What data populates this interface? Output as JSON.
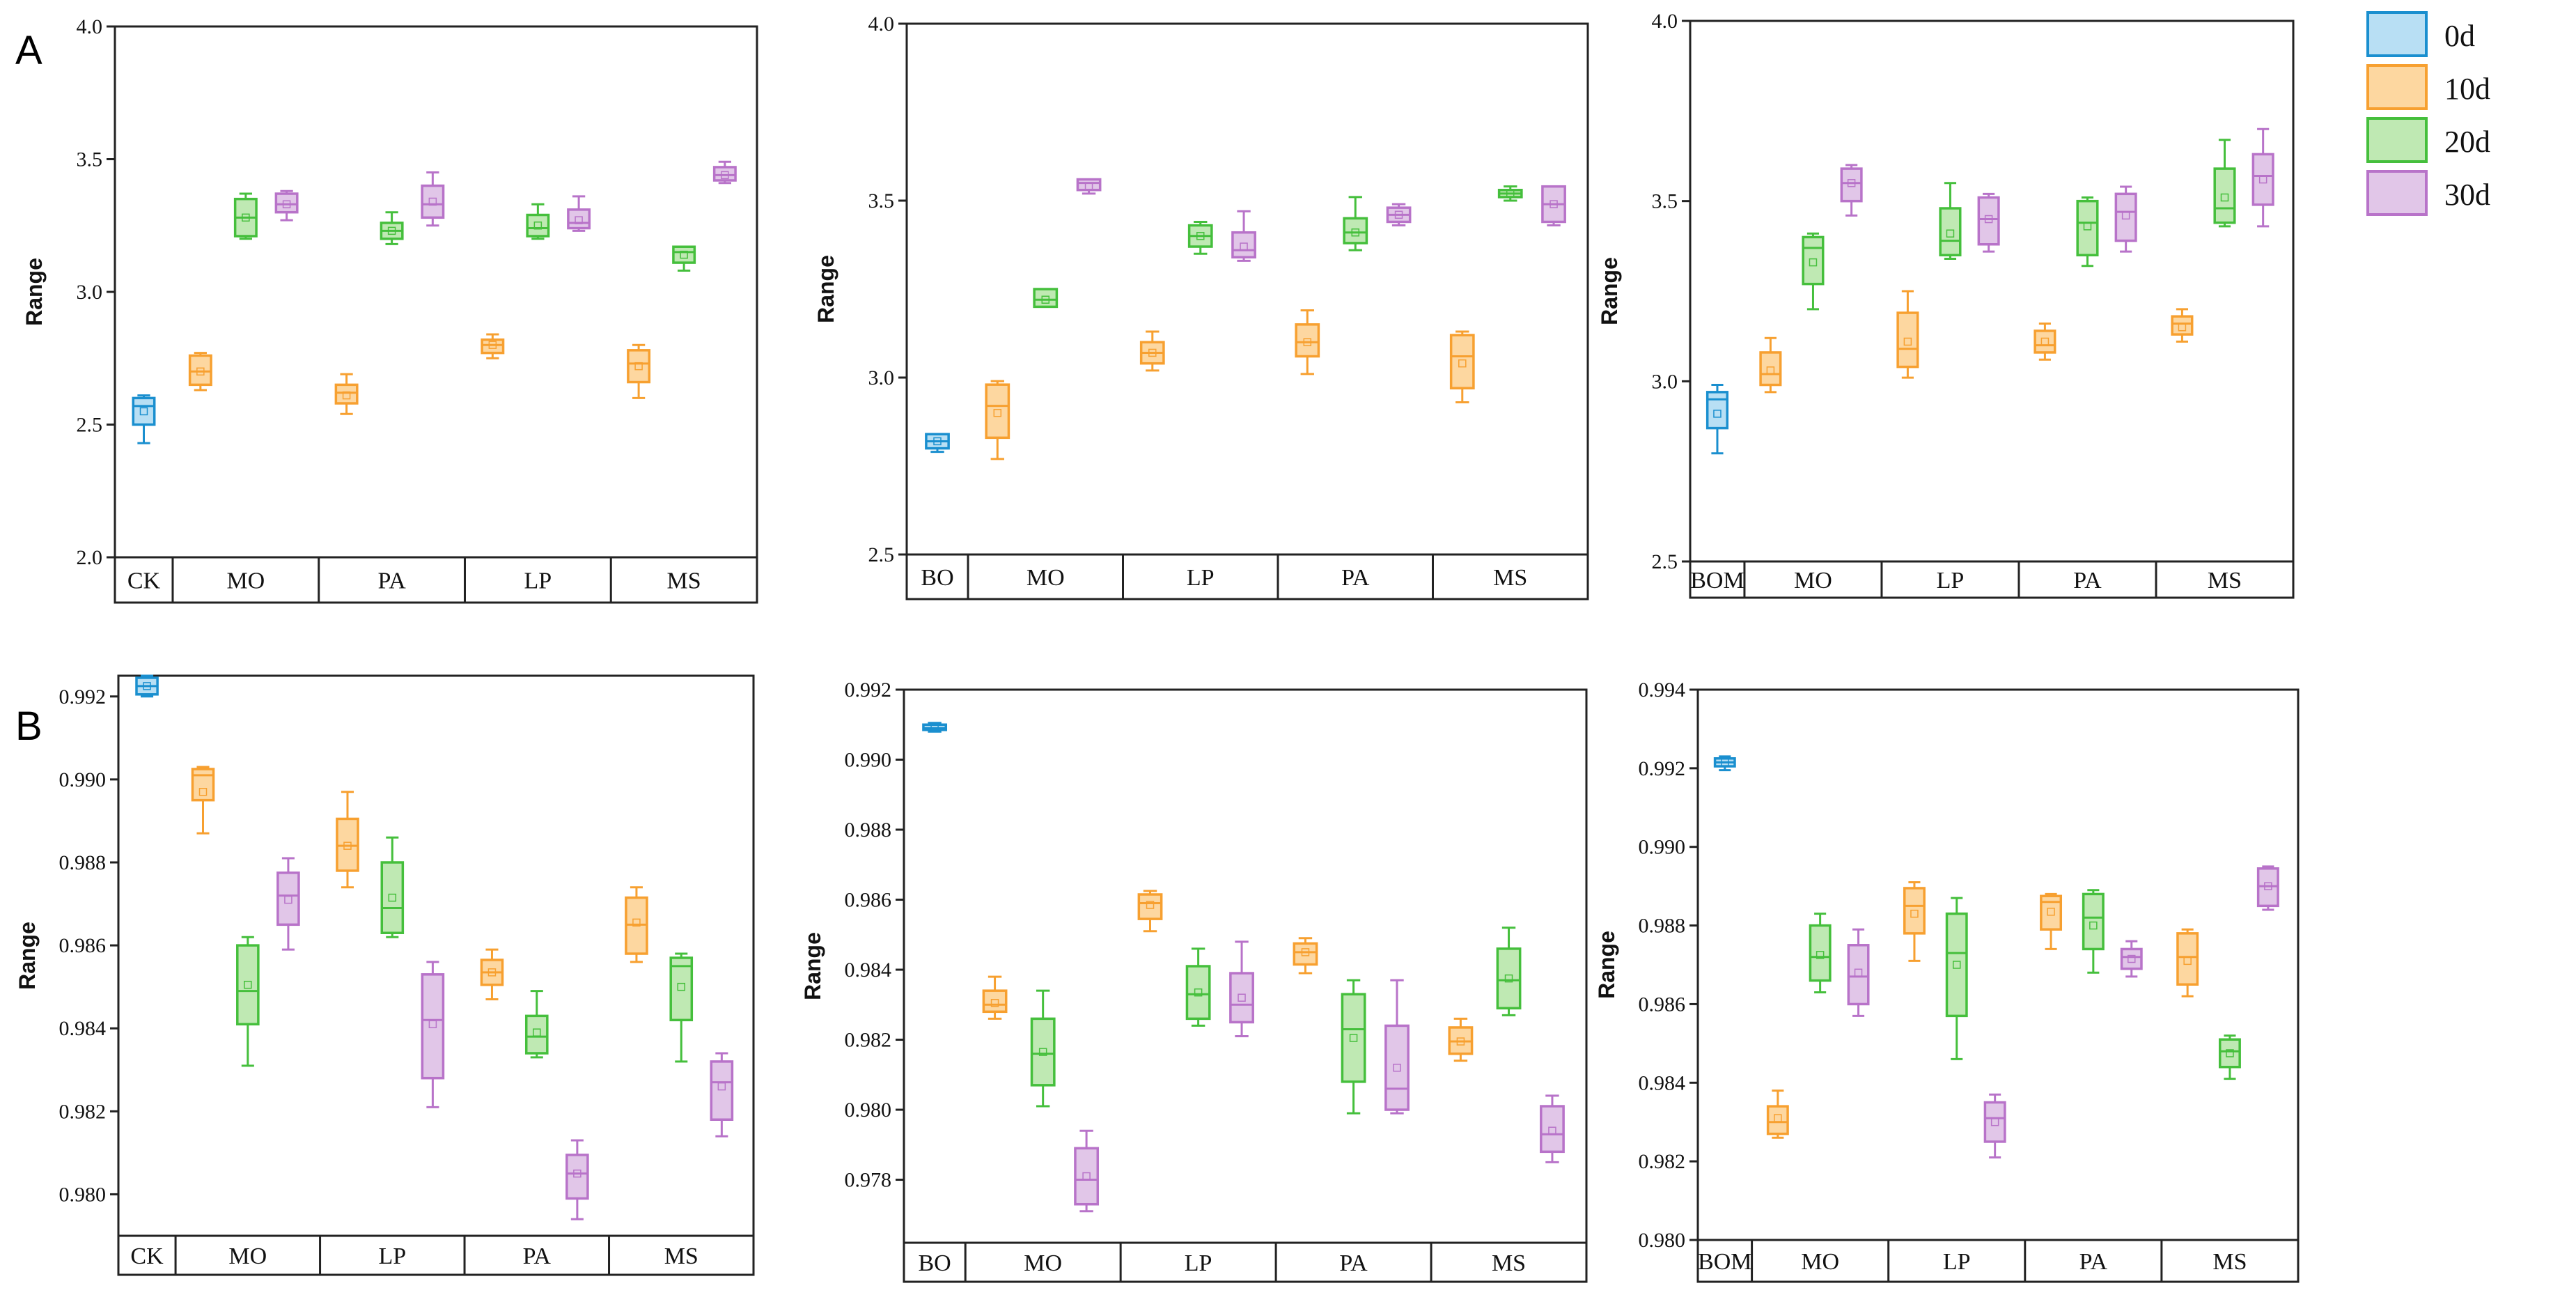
{
  "panels": {
    "A": "A",
    "B": "B"
  },
  "legend": {
    "items": [
      {
        "label": "0d",
        "fill": "#b8dff4",
        "stroke": "#1a8fcf"
      },
      {
        "label": "10d",
        "fill": "#fdd7a0",
        "stroke": "#f7a030"
      },
      {
        "label": "20d",
        "fill": "#bfe9b3",
        "stroke": "#45bf3c"
      },
      {
        "label": "30d",
        "fill": "#e1c6e8",
        "stroke": "#b873c9"
      }
    ]
  },
  "chart_data": [
    {
      "type": "box",
      "panel": "A",
      "ylabel": "Range",
      "ylim": [
        2.0,
        4.0
      ],
      "yticks": [
        "2.0",
        "2.5",
        "3.0",
        "3.5",
        "4.0"
      ],
      "groups": [
        "CK",
        "MO",
        "PA",
        "LP",
        "MS"
      ],
      "boxes": [
        {
          "group": 0,
          "series": 0,
          "min": 2.43,
          "q1": 2.5,
          "median": 2.57,
          "q3": 2.6,
          "max": 2.61,
          "mean": 2.55
        },
        {
          "group": 1,
          "series": 1,
          "min": 2.63,
          "q1": 2.65,
          "median": 2.7,
          "q3": 2.76,
          "max": 2.77,
          "mean": 2.7
        },
        {
          "group": 1,
          "series": 2,
          "min": 3.2,
          "q1": 3.21,
          "median": 3.28,
          "q3": 3.35,
          "max": 3.37,
          "mean": 3.28
        },
        {
          "group": 1,
          "series": 3,
          "min": 3.27,
          "q1": 3.3,
          "median": 3.33,
          "q3": 3.37,
          "max": 3.38,
          "mean": 3.33
        },
        {
          "group": 2,
          "series": 1,
          "min": 2.54,
          "q1": 2.58,
          "median": 2.62,
          "q3": 2.65,
          "max": 2.69,
          "mean": 2.61
        },
        {
          "group": 2,
          "series": 2,
          "min": 3.18,
          "q1": 3.2,
          "median": 3.23,
          "q3": 3.26,
          "max": 3.3,
          "mean": 3.23
        },
        {
          "group": 2,
          "series": 3,
          "min": 3.25,
          "q1": 3.28,
          "median": 3.33,
          "q3": 3.4,
          "max": 3.45,
          "mean": 3.34
        },
        {
          "group": 3,
          "series": 1,
          "min": 2.75,
          "q1": 2.77,
          "median": 2.8,
          "q3": 2.82,
          "max": 2.84,
          "mean": 2.8
        },
        {
          "group": 3,
          "series": 2,
          "min": 3.2,
          "q1": 3.21,
          "median": 3.24,
          "q3": 3.29,
          "max": 3.33,
          "mean": 3.25
        },
        {
          "group": 3,
          "series": 3,
          "min": 3.23,
          "q1": 3.24,
          "median": 3.26,
          "q3": 3.31,
          "max": 3.36,
          "mean": 3.27
        },
        {
          "group": 4,
          "series": 1,
          "min": 2.6,
          "q1": 2.66,
          "median": 2.73,
          "q3": 2.78,
          "max": 2.8,
          "mean": 2.72
        },
        {
          "group": 4,
          "series": 2,
          "min": 3.08,
          "q1": 3.11,
          "median": 3.15,
          "q3": 3.17,
          "max": 3.17,
          "mean": 3.14
        },
        {
          "group": 4,
          "series": 3,
          "min": 3.41,
          "q1": 3.42,
          "median": 3.44,
          "q3": 3.47,
          "max": 3.49,
          "mean": 3.44
        }
      ]
    },
    {
      "type": "box",
      "panel": "A",
      "ylabel": "Range",
      "ylim": [
        2.5,
        4.0
      ],
      "yticks": [
        "2.5",
        "3.0",
        "3.5",
        "4.0"
      ],
      "groups": [
        "BO",
        "MO",
        "LP",
        "PA",
        "MS"
      ],
      "boxes": [
        {
          "group": 0,
          "series": 0,
          "min": 2.79,
          "q1": 2.8,
          "median": 2.82,
          "q3": 2.84,
          "max": 2.84,
          "mean": 2.82
        },
        {
          "group": 1,
          "series": 1,
          "min": 2.77,
          "q1": 2.83,
          "median": 2.92,
          "q3": 2.98,
          "max": 2.99,
          "mean": 2.9
        },
        {
          "group": 1,
          "series": 2,
          "min": 3.2,
          "q1": 3.2,
          "median": 3.22,
          "q3": 3.25,
          "max": 3.25,
          "mean": 3.22
        },
        {
          "group": 1,
          "series": 3,
          "min": 3.52,
          "q1": 3.53,
          "median": 3.55,
          "q3": 3.56,
          "max": 3.56,
          "mean": 3.54
        },
        {
          "group": 2,
          "series": 1,
          "min": 3.02,
          "q1": 3.04,
          "median": 3.07,
          "q3": 3.1,
          "max": 3.13,
          "mean": 3.07
        },
        {
          "group": 2,
          "series": 2,
          "min": 3.35,
          "q1": 3.37,
          "median": 3.4,
          "q3": 3.43,
          "max": 3.44,
          "mean": 3.4
        },
        {
          "group": 2,
          "series": 3,
          "min": 3.33,
          "q1": 3.34,
          "median": 3.36,
          "q3": 3.41,
          "max": 3.47,
          "mean": 3.37
        },
        {
          "group": 3,
          "series": 1,
          "min": 3.01,
          "q1": 3.06,
          "median": 3.1,
          "q3": 3.15,
          "max": 3.19,
          "mean": 3.1
        },
        {
          "group": 3,
          "series": 2,
          "min": 3.36,
          "q1": 3.38,
          "median": 3.41,
          "q3": 3.45,
          "max": 3.51,
          "mean": 3.41
        },
        {
          "group": 3,
          "series": 3,
          "min": 3.43,
          "q1": 3.44,
          "median": 3.46,
          "q3": 3.48,
          "max": 3.49,
          "mean": 3.46
        },
        {
          "group": 4,
          "series": 1,
          "min": 2.93,
          "q1": 2.97,
          "median": 3.06,
          "q3": 3.12,
          "max": 3.13,
          "mean": 3.04
        },
        {
          "group": 4,
          "series": 2,
          "min": 3.5,
          "q1": 3.51,
          "median": 3.52,
          "q3": 3.53,
          "max": 3.54,
          "mean": 3.52
        },
        {
          "group": 4,
          "series": 3,
          "min": 3.43,
          "q1": 3.44,
          "median": 3.49,
          "q3": 3.54,
          "max": 3.54,
          "mean": 3.49
        }
      ]
    },
    {
      "type": "box",
      "panel": "A",
      "ylabel": "Range",
      "ylim": [
        2.5,
        4.0
      ],
      "yticks": [
        "2.5",
        "3.0",
        "3.5",
        "4.0"
      ],
      "groups": [
        "BOM",
        "MO",
        "LP",
        "PA",
        "MS"
      ],
      "boxes": [
        {
          "group": 0,
          "series": 0,
          "min": 2.8,
          "q1": 2.87,
          "median": 2.95,
          "q3": 2.97,
          "max": 2.99,
          "mean": 2.91
        },
        {
          "group": 1,
          "series": 1,
          "min": 2.97,
          "q1": 2.99,
          "median": 3.02,
          "q3": 3.08,
          "max": 3.12,
          "mean": 3.03
        },
        {
          "group": 1,
          "series": 2,
          "min": 3.2,
          "q1": 3.27,
          "median": 3.37,
          "q3": 3.4,
          "max": 3.41,
          "mean": 3.33
        },
        {
          "group": 1,
          "series": 3,
          "min": 3.46,
          "q1": 3.5,
          "median": 3.55,
          "q3": 3.59,
          "max": 3.6,
          "mean": 3.55
        },
        {
          "group": 2,
          "series": 1,
          "min": 3.01,
          "q1": 3.04,
          "median": 3.09,
          "q3": 3.19,
          "max": 3.25,
          "mean": 3.11
        },
        {
          "group": 2,
          "series": 2,
          "min": 3.34,
          "q1": 3.35,
          "median": 3.39,
          "q3": 3.48,
          "max": 3.55,
          "mean": 3.41
        },
        {
          "group": 2,
          "series": 3,
          "min": 3.36,
          "q1": 3.38,
          "median": 3.45,
          "q3": 3.51,
          "max": 3.52,
          "mean": 3.45
        },
        {
          "group": 3,
          "series": 1,
          "min": 3.06,
          "q1": 3.08,
          "median": 3.1,
          "q3": 3.14,
          "max": 3.16,
          "mean": 3.11
        },
        {
          "group": 3,
          "series": 2,
          "min": 3.32,
          "q1": 3.35,
          "median": 3.44,
          "q3": 3.5,
          "max": 3.51,
          "mean": 3.43
        },
        {
          "group": 3,
          "series": 3,
          "min": 3.36,
          "q1": 3.39,
          "median": 3.47,
          "q3": 3.52,
          "max": 3.54,
          "mean": 3.46
        },
        {
          "group": 4,
          "series": 1,
          "min": 3.11,
          "q1": 3.13,
          "median": 3.16,
          "q3": 3.18,
          "max": 3.2,
          "mean": 3.15
        },
        {
          "group": 4,
          "series": 2,
          "min": 3.43,
          "q1": 3.44,
          "median": 3.48,
          "q3": 3.59,
          "max": 3.67,
          "mean": 3.51
        },
        {
          "group": 4,
          "series": 3,
          "min": 3.43,
          "q1": 3.49,
          "median": 3.57,
          "q3": 3.63,
          "max": 3.7,
          "mean": 3.56
        }
      ]
    },
    {
      "type": "box",
      "panel": "B",
      "ylabel": "Range",
      "ylim": [
        0.979,
        0.9925
      ],
      "yticks": [
        "0.980",
        "0.982",
        "0.984",
        "0.986",
        "0.988",
        "0.990",
        "0.992"
      ],
      "tickvals": [
        0.98,
        0.982,
        0.984,
        0.986,
        0.988,
        0.99,
        0.992
      ],
      "groups": [
        "CK",
        "MO",
        "LP",
        "PA",
        "MS"
      ],
      "boxes": [
        {
          "group": 0,
          "series": 0,
          "min": 0.992,
          "q1": 0.99205,
          "median": 0.99225,
          "q3": 0.99245,
          "max": 0.9925,
          "mean": 0.99225
        },
        {
          "group": 1,
          "series": 1,
          "min": 0.9887,
          "q1": 0.9895,
          "median": 0.9901,
          "q3": 0.99025,
          "max": 0.9903,
          "mean": 0.9897
        },
        {
          "group": 1,
          "series": 2,
          "min": 0.9831,
          "q1": 0.9841,
          "median": 0.9849,
          "q3": 0.986,
          "max": 0.9862,
          "mean": 0.98505
        },
        {
          "group": 1,
          "series": 3,
          "min": 0.9859,
          "q1": 0.9865,
          "median": 0.9872,
          "q3": 0.98775,
          "max": 0.9881,
          "mean": 0.9871
        },
        {
          "group": 2,
          "series": 1,
          "min": 0.9874,
          "q1": 0.9878,
          "median": 0.9884,
          "q3": 0.98905,
          "max": 0.9897,
          "mean": 0.9884
        },
        {
          "group": 2,
          "series": 2,
          "min": 0.9862,
          "q1": 0.9863,
          "median": 0.9869,
          "q3": 0.988,
          "max": 0.9886,
          "mean": 0.98715
        },
        {
          "group": 2,
          "series": 3,
          "min": 0.9821,
          "q1": 0.9828,
          "median": 0.9842,
          "q3": 0.9853,
          "max": 0.9856,
          "mean": 0.9841
        },
        {
          "group": 3,
          "series": 1,
          "min": 0.9847,
          "q1": 0.98505,
          "median": 0.98535,
          "q3": 0.98565,
          "max": 0.9859,
          "mean": 0.98535
        },
        {
          "group": 3,
          "series": 2,
          "min": 0.9833,
          "q1": 0.9834,
          "median": 0.9838,
          "q3": 0.9843,
          "max": 0.9849,
          "mean": 0.9839
        },
        {
          "group": 3,
          "series": 3,
          "min": 0.9794,
          "q1": 0.9799,
          "median": 0.9805,
          "q3": 0.98095,
          "max": 0.9813,
          "mean": 0.9805
        },
        {
          "group": 4,
          "series": 1,
          "min": 0.9856,
          "q1": 0.9858,
          "median": 0.9865,
          "q3": 0.98715,
          "max": 0.9874,
          "mean": 0.98655
        },
        {
          "group": 4,
          "series": 2,
          "min": 0.9832,
          "q1": 0.9842,
          "median": 0.9855,
          "q3": 0.9857,
          "max": 0.9858,
          "mean": 0.985
        },
        {
          "group": 4,
          "series": 3,
          "min": 0.9814,
          "q1": 0.9818,
          "median": 0.9827,
          "q3": 0.9832,
          "max": 0.9834,
          "mean": 0.9826
        }
      ]
    },
    {
      "type": "box",
      "panel": "B",
      "ylabel": "Range",
      "ylim": [
        0.9762,
        0.992
      ],
      "yticks": [
        "0.978",
        "0.980",
        "0.982",
        "0.984",
        "0.986",
        "0.988",
        "0.990",
        "0.992"
      ],
      "tickvals": [
        0.978,
        0.98,
        0.982,
        0.984,
        0.986,
        0.988,
        0.99,
        0.992
      ],
      "groups": [
        "BO",
        "MO",
        "LP",
        "PA",
        "MS"
      ],
      "boxes": [
        {
          "group": 0,
          "series": 0,
          "min": 0.9908,
          "q1": 0.99085,
          "median": 0.9909,
          "q3": 0.991,
          "max": 0.99105,
          "mean": 0.9909
        },
        {
          "group": 1,
          "series": 1,
          "min": 0.9826,
          "q1": 0.9828,
          "median": 0.983,
          "q3": 0.9834,
          "max": 0.9838,
          "mean": 0.98305
        },
        {
          "group": 1,
          "series": 2,
          "min": 0.9801,
          "q1": 0.9807,
          "median": 0.9816,
          "q3": 0.9826,
          "max": 0.9834,
          "mean": 0.98165
        },
        {
          "group": 1,
          "series": 3,
          "min": 0.9771,
          "q1": 0.9773,
          "median": 0.978,
          "q3": 0.9789,
          "max": 0.9794,
          "mean": 0.9781
        },
        {
          "group": 2,
          "series": 1,
          "min": 0.9851,
          "q1": 0.98545,
          "median": 0.9859,
          "q3": 0.98615,
          "max": 0.98625,
          "mean": 0.98585
        },
        {
          "group": 2,
          "series": 2,
          "min": 0.9824,
          "q1": 0.9826,
          "median": 0.9833,
          "q3": 0.9841,
          "max": 0.9846,
          "mean": 0.98335
        },
        {
          "group": 2,
          "series": 3,
          "min": 0.9821,
          "q1": 0.9825,
          "median": 0.983,
          "q3": 0.9839,
          "max": 0.9848,
          "mean": 0.9832
        },
        {
          "group": 3,
          "series": 1,
          "min": 0.9839,
          "q1": 0.98415,
          "median": 0.9845,
          "q3": 0.98475,
          "max": 0.9849,
          "mean": 0.9845
        },
        {
          "group": 3,
          "series": 2,
          "min": 0.9799,
          "q1": 0.9808,
          "median": 0.9823,
          "q3": 0.9833,
          "max": 0.9837,
          "mean": 0.98205
        },
        {
          "group": 3,
          "series": 3,
          "min": 0.9799,
          "q1": 0.98,
          "median": 0.9806,
          "q3": 0.9824,
          "max": 0.9837,
          "mean": 0.9812
        },
        {
          "group": 4,
          "series": 1,
          "min": 0.9814,
          "q1": 0.9816,
          "median": 0.98195,
          "q3": 0.98235,
          "max": 0.9826,
          "mean": 0.98195
        },
        {
          "group": 4,
          "series": 2,
          "min": 0.9827,
          "q1": 0.9829,
          "median": 0.9837,
          "q3": 0.9846,
          "max": 0.9852,
          "mean": 0.98375
        },
        {
          "group": 4,
          "series": 3,
          "min": 0.9785,
          "q1": 0.9788,
          "median": 0.9793,
          "q3": 0.9801,
          "max": 0.9804,
          "mean": 0.9794
        }
      ]
    },
    {
      "type": "box",
      "panel": "B",
      "ylabel": "Range",
      "ylim": [
        0.98,
        0.994
      ],
      "yticks": [
        "0.980",
        "0.982",
        "0.984",
        "0.986",
        "0.988",
        "0.990",
        "0.992",
        "0.994"
      ],
      "tickvals": [
        0.98,
        0.982,
        0.984,
        0.986,
        0.988,
        0.99,
        0.992,
        0.994
      ],
      "groups": [
        "BOM",
        "MO",
        "LP",
        "PA",
        "MS"
      ],
      "boxes": [
        {
          "group": 0,
          "series": 0,
          "min": 0.99195,
          "q1": 0.99205,
          "median": 0.99215,
          "q3": 0.99225,
          "max": 0.9923,
          "mean": 0.99215
        },
        {
          "group": 1,
          "series": 1,
          "min": 0.9826,
          "q1": 0.9827,
          "median": 0.983,
          "q3": 0.9834,
          "max": 0.9838,
          "mean": 0.9831
        },
        {
          "group": 1,
          "series": 2,
          "min": 0.9863,
          "q1": 0.9866,
          "median": 0.9872,
          "q3": 0.988,
          "max": 0.9883,
          "mean": 0.98725
        },
        {
          "group": 1,
          "series": 3,
          "min": 0.9857,
          "q1": 0.986,
          "median": 0.9867,
          "q3": 0.9875,
          "max": 0.9879,
          "mean": 0.9868
        },
        {
          "group": 2,
          "series": 1,
          "min": 0.9871,
          "q1": 0.9878,
          "median": 0.9885,
          "q3": 0.98895,
          "max": 0.9891,
          "mean": 0.9883
        },
        {
          "group": 2,
          "series": 2,
          "min": 0.9846,
          "q1": 0.9857,
          "median": 0.9873,
          "q3": 0.9883,
          "max": 0.9887,
          "mean": 0.987
        },
        {
          "group": 2,
          "series": 3,
          "min": 0.9821,
          "q1": 0.9825,
          "median": 0.9831,
          "q3": 0.9835,
          "max": 0.9837,
          "mean": 0.983
        },
        {
          "group": 3,
          "series": 1,
          "min": 0.9874,
          "q1": 0.9879,
          "median": 0.9886,
          "q3": 0.98875,
          "max": 0.9888,
          "mean": 0.98835
        },
        {
          "group": 3,
          "series": 2,
          "min": 0.9868,
          "q1": 0.9874,
          "median": 0.9882,
          "q3": 0.9888,
          "max": 0.9889,
          "mean": 0.988
        },
        {
          "group": 3,
          "series": 3,
          "min": 0.9867,
          "q1": 0.9869,
          "median": 0.9872,
          "q3": 0.9874,
          "max": 0.9876,
          "mean": 0.98715
        },
        {
          "group": 4,
          "series": 1,
          "min": 0.9862,
          "q1": 0.9865,
          "median": 0.9872,
          "q3": 0.9878,
          "max": 0.9879,
          "mean": 0.9871
        },
        {
          "group": 4,
          "series": 2,
          "min": 0.9841,
          "q1": 0.9844,
          "median": 0.9848,
          "q3": 0.9851,
          "max": 0.9852,
          "mean": 0.98475
        },
        {
          "group": 4,
          "series": 3,
          "min": 0.9884,
          "q1": 0.9885,
          "median": 0.989,
          "q3": 0.98945,
          "max": 0.9895,
          "mean": 0.989
        }
      ]
    }
  ]
}
